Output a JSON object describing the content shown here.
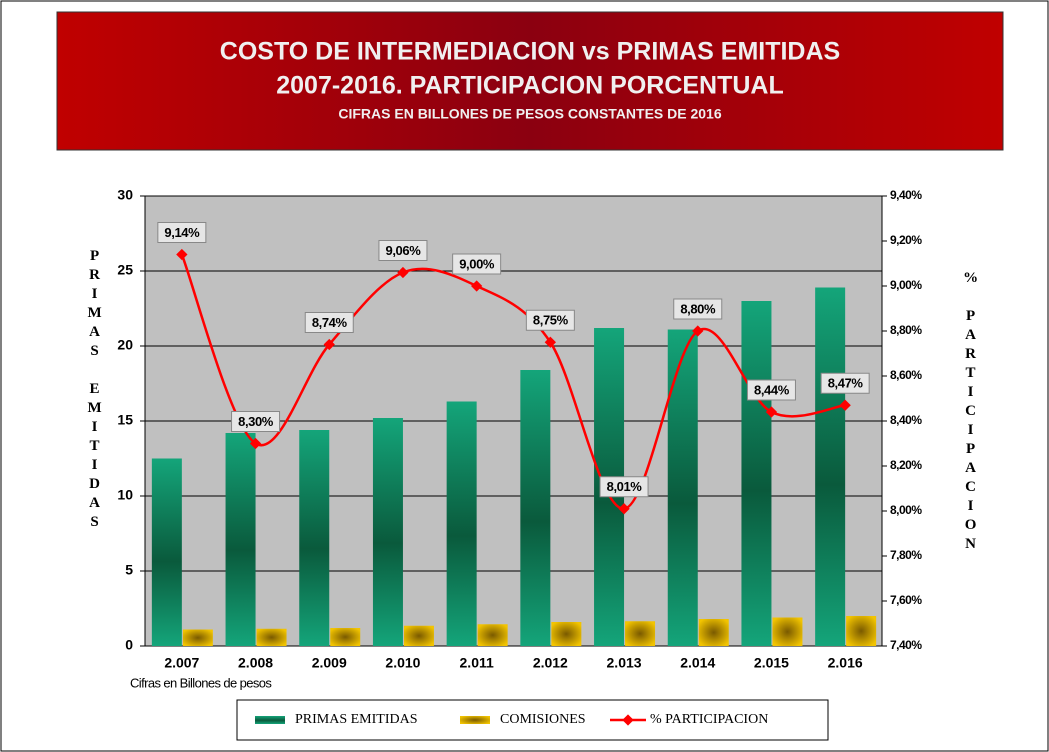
{
  "chart_data": {
    "type": "bar",
    "title": "COSTO DE INTERMEDIACION vs PRIMAS EMITIDAS",
    "title_line2": "2007-2016.  PARTICIPACION PORCENTUAL",
    "subtitle": "CIFRAS EN BILLONES DE PESOS CONSTANTES DE 2016",
    "y_label": "PRIMAS EMITIDAS",
    "y2_label": "% PARTICIPACION",
    "note": "Cifras en Billones de pesos",
    "categories": [
      "2.007",
      "2.008",
      "2.009",
      "2.010",
      "2.011",
      "2.012",
      "2.013",
      "2.014",
      "2.015",
      "2.016"
    ],
    "series": [
      {
        "name": "PRIMAS EMITIDAS",
        "color": "#0f8a5f",
        "values": [
          12.5,
          14.2,
          14.4,
          15.2,
          16.3,
          18.4,
          21.2,
          21.1,
          23.0,
          23.9
        ]
      },
      {
        "name": "COMISIONES",
        "color": "#e0b000",
        "values": [
          1.1,
          1.15,
          1.2,
          1.35,
          1.45,
          1.6,
          1.65,
          1.8,
          1.9,
          2.0
        ]
      },
      {
        "name": "% PARTICIPACION",
        "color": "#ff0000",
        "axis": "y2",
        "type": "line",
        "values": [
          9.14,
          8.3,
          8.74,
          9.06,
          9.0,
          8.75,
          8.01,
          8.8,
          8.44,
          8.47
        ],
        "value_labels": [
          "9,14%",
          "8,30%",
          "8,74%",
          "9,06%",
          "9,00%",
          "8,75%",
          "8,01%",
          "8,80%",
          "8,44%",
          "8,47%"
        ]
      }
    ],
    "ylim": [
      0,
      30
    ],
    "yticks": [
      0,
      5,
      10,
      15,
      20,
      25,
      30
    ],
    "y2lim": [
      7.4,
      9.4
    ],
    "y2ticks": [
      {
        "value": 7.4,
        "label": "7,40%"
      },
      {
        "value": 7.6,
        "label": "7,60%"
      },
      {
        "value": 7.8,
        "label": "7,80%"
      },
      {
        "value": 8.0,
        "label": "8,00%"
      },
      {
        "value": 8.2,
        "label": "8,20%"
      },
      {
        "value": 8.4,
        "label": "8,40%"
      },
      {
        "value": 8.6,
        "label": "8,60%"
      },
      {
        "value": 8.8,
        "label": "8,80%"
      },
      {
        "value": 9.0,
        "label": "9,00%"
      },
      {
        "value": 9.2,
        "label": "9,20%"
      },
      {
        "value": 9.4,
        "label": "9,40%"
      }
    ],
    "grid": true,
    "legend": "bottom"
  }
}
